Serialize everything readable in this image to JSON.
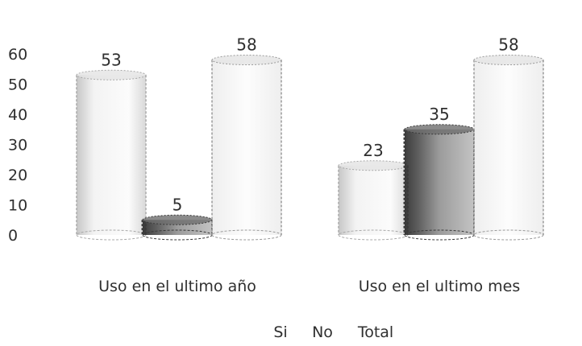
{
  "chart_data": {
    "type": "bar",
    "title": "",
    "xlabel": "",
    "ylabel": "",
    "categories": [
      "Uso en el ultimo año",
      "Uso en el ultimo mes"
    ],
    "series": [
      {
        "name": "Si",
        "values": [
          53,
          23
        ]
      },
      {
        "name": "No",
        "values": [
          5,
          35
        ]
      },
      {
        "name": "Total",
        "values": [
          58,
          58
        ]
      }
    ],
    "yticks": [
      0,
      10,
      20,
      30,
      40,
      50,
      60
    ],
    "ylim": [
      0,
      60
    ],
    "grid": false,
    "legend_position": "bottom",
    "style": "3d-cylinder"
  }
}
